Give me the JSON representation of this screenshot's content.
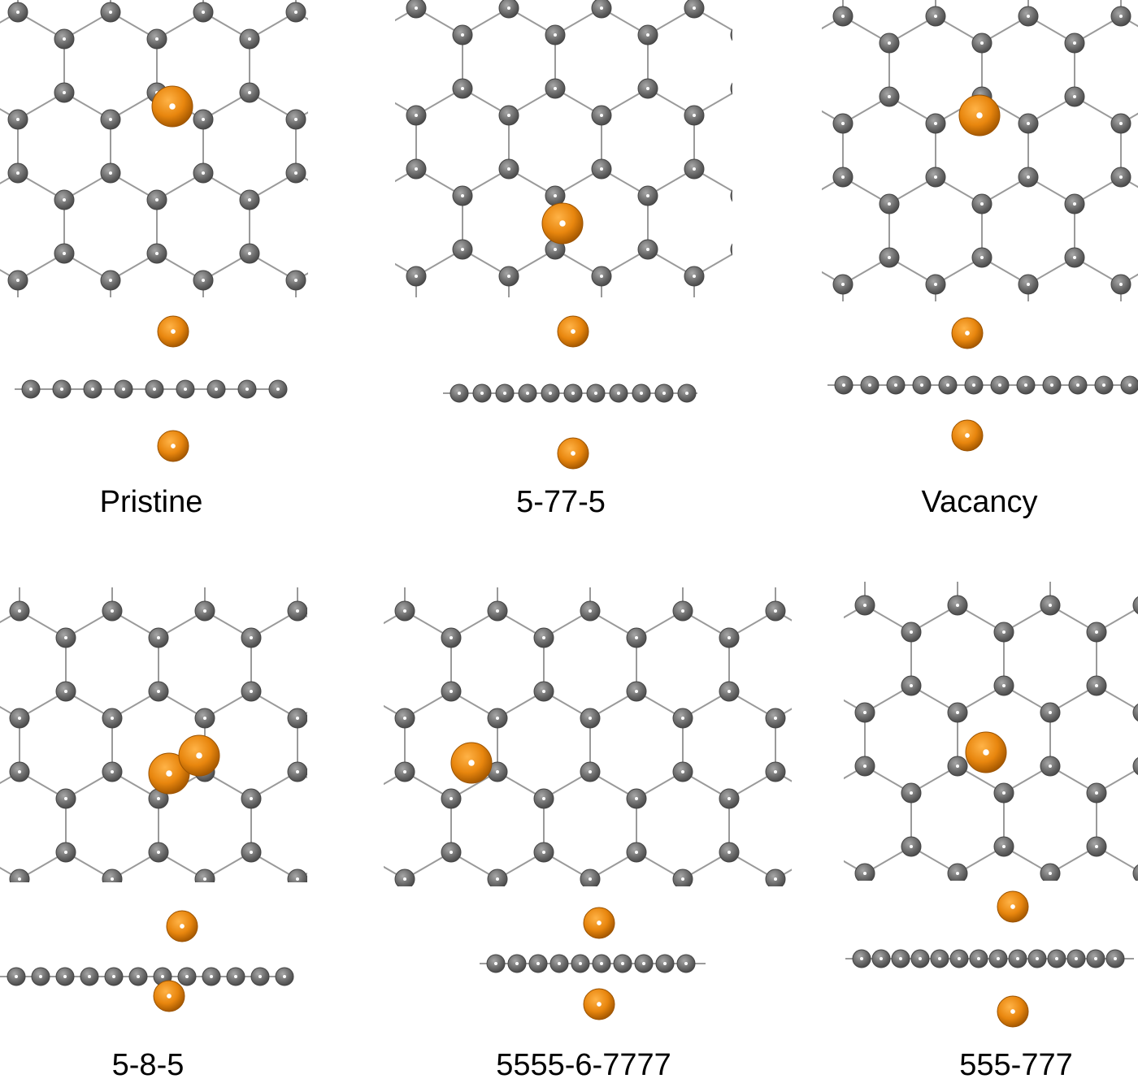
{
  "panels": [
    {
      "label": "Pristine"
    },
    {
      "label": "5-77-5"
    },
    {
      "label": "Vacancy"
    },
    {
      "label": "5-8-5"
    },
    {
      "label": "5555-6-7777"
    },
    {
      "label": "555-777"
    }
  ]
}
